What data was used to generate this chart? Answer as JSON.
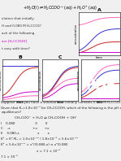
{
  "colors": {
    "blue": "#3333cc",
    "red": "#cc2222",
    "magenta": "#cc00cc",
    "pink": "#ff66bb",
    "dark_navy": "#000066"
  },
  "background": "#f0f0f0",
  "text_color": "#222222"
}
